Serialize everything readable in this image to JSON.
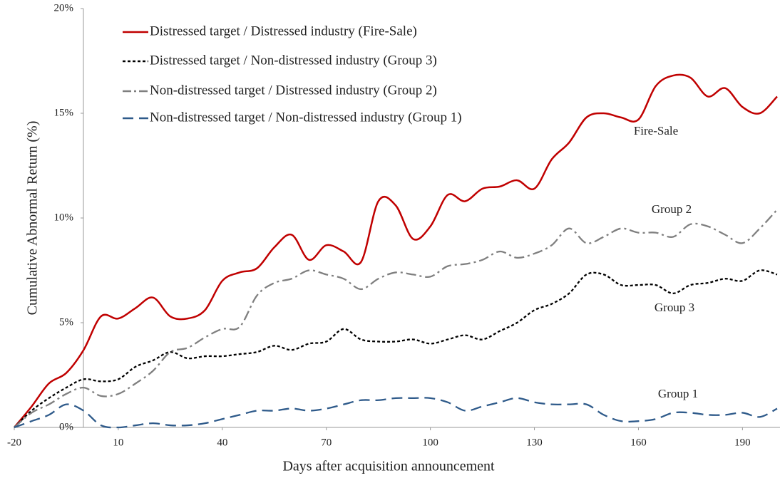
{
  "chart_data": {
    "type": "line",
    "xlabel": "Days after acquisition announcement",
    "ylabel": "Cumulative Abnormal Return (%)",
    "x": [
      -20,
      -15,
      -10,
      -5,
      0,
      5,
      10,
      15,
      20,
      25,
      30,
      35,
      40,
      45,
      50,
      55,
      60,
      65,
      70,
      75,
      80,
      85,
      90,
      95,
      100,
      105,
      110,
      115,
      120,
      125,
      130,
      135,
      140,
      145,
      150,
      155,
      160,
      165,
      170,
      175,
      180,
      185,
      190,
      195,
      200
    ],
    "series": [
      {
        "name": "Distressed target / Distressed industry (Fire-Sale)",
        "color": "#c00000",
        "dash": "solid",
        "values": [
          0,
          1.0,
          2.1,
          2.6,
          3.7,
          5.3,
          5.2,
          5.7,
          6.2,
          5.3,
          5.2,
          5.6,
          7.0,
          7.4,
          7.6,
          8.6,
          9.2,
          8.0,
          8.7,
          8.4,
          7.9,
          10.8,
          10.6,
          9.0,
          9.6,
          11.1,
          10.8,
          11.4,
          11.5,
          11.8,
          11.4,
          12.8,
          13.6,
          14.8,
          15.0,
          14.8,
          14.7,
          16.3,
          16.8,
          16.7,
          15.8,
          16.2,
          15.3,
          15.0,
          15.8
        ]
      },
      {
        "name": "Distressed target / Non-distressed industry (Group 3)",
        "color": "#000000",
        "dash": "dotted",
        "values": [
          0,
          0.8,
          1.4,
          1.9,
          2.3,
          2.2,
          2.3,
          2.9,
          3.2,
          3.6,
          3.3,
          3.4,
          3.4,
          3.5,
          3.6,
          3.9,
          3.7,
          4.0,
          4.1,
          4.7,
          4.2,
          4.1,
          4.1,
          4.2,
          4.0,
          4.2,
          4.4,
          4.2,
          4.6,
          5.0,
          5.6,
          5.9,
          6.4,
          7.3,
          7.3,
          6.8,
          6.8,
          6.8,
          6.4,
          6.8,
          6.9,
          7.1,
          7.0,
          7.5,
          7.3
        ]
      },
      {
        "name": "Non-distressed target / Distressed industry (Group 2)",
        "color": "#7f7f7f",
        "dash": "dashdot",
        "values": [
          0,
          0.7,
          1.1,
          1.6,
          1.9,
          1.5,
          1.6,
          2.1,
          2.7,
          3.6,
          3.8,
          4.3,
          4.7,
          4.8,
          6.3,
          6.9,
          7.1,
          7.5,
          7.3,
          7.1,
          6.6,
          7.1,
          7.4,
          7.3,
          7.2,
          7.7,
          7.8,
          8.0,
          8.4,
          8.1,
          8.3,
          8.7,
          9.5,
          8.8,
          9.1,
          9.5,
          9.3,
          9.3,
          9.1,
          9.7,
          9.6,
          9.2,
          8.8,
          9.5,
          10.4
        ]
      },
      {
        "name": "Non-distressed target / Non-distressed industry (Group 1)",
        "color": "#2e5a8a",
        "dash": "dashed",
        "values": [
          0,
          0.3,
          0.6,
          1.1,
          0.8,
          0.1,
          0.0,
          0.1,
          0.2,
          0.1,
          0.1,
          0.2,
          0.4,
          0.6,
          0.8,
          0.8,
          0.9,
          0.8,
          0.9,
          1.1,
          1.3,
          1.3,
          1.4,
          1.4,
          1.4,
          1.2,
          0.8,
          1.0,
          1.2,
          1.4,
          1.2,
          1.1,
          1.1,
          1.1,
          0.6,
          0.3,
          0.3,
          0.4,
          0.7,
          0.7,
          0.6,
          0.6,
          0.7,
          0.5,
          0.9
        ]
      }
    ],
    "annotations": [
      "Fire-Sale",
      "Group 2",
      "Group 3",
      "Group 1"
    ],
    "xlim": [
      -20,
      200
    ],
    "xticks": [
      -20,
      10,
      40,
      70,
      100,
      130,
      160,
      190
    ],
    "ylim": [
      0,
      20
    ],
    "yticks": [
      {
        "value": 0,
        "label": "0%"
      },
      {
        "value": 5,
        "label": "5%"
      },
      {
        "value": 10,
        "label": "10%"
      },
      {
        "value": 15,
        "label": "15%"
      },
      {
        "value": 20,
        "label": "20%"
      }
    ],
    "grid": false,
    "legend": "upper-left"
  }
}
